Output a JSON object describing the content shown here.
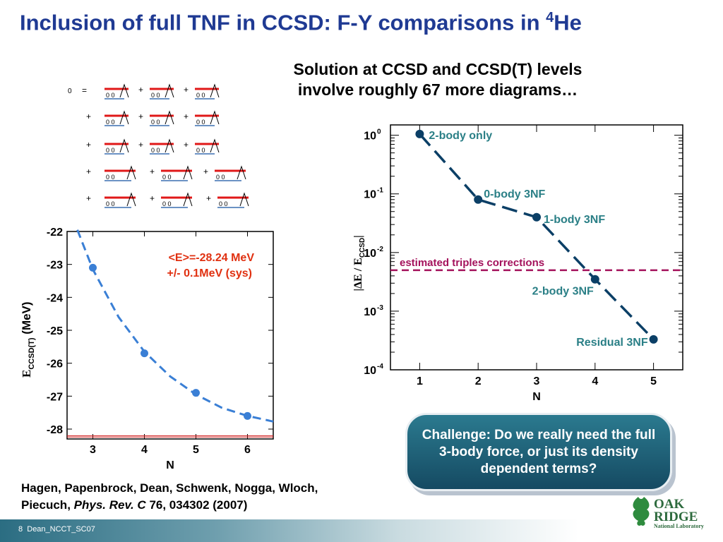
{
  "header": {
    "title_main": "Inclusion of full TNF in CCSD: F-Y comparisons in ",
    "title_sup": "4",
    "title_end": "He"
  },
  "subtitle": {
    "line1": "Solution at CCSD and CCSD(T) levels",
    "line2": "involve roughly 67 more diagrams…"
  },
  "diagrams": {
    "zero_label": "0",
    "equals": "=",
    "plus": "+",
    "vertex_label": "0 0"
  },
  "left_plot": {
    "ylabel_main": "E",
    "ylabel_sub": "CCSD(T)",
    "ylabel_unit": " (MeV)",
    "xlabel": "N",
    "annotation_line1": "<E>=-28.24 MeV",
    "annotation_line2": "+/- 0.1MeV (sys)"
  },
  "right_plot": {
    "ylabel": "|ΔE / E",
    "ylabel_sub": "CCSD",
    "ylabel_end": "|",
    "xlabel": "N",
    "triples_label": "estimated triples corrections",
    "point_labels": [
      "2-body only",
      "0-body 3NF",
      "1-body 3NF",
      "2-body 3NF",
      "Residual 3NF"
    ]
  },
  "chart_data": [
    {
      "type": "scatter",
      "xlabel": "N",
      "ylabel": "E_CCSD(T) (MeV)",
      "xlim": [
        2.5,
        6.5
      ],
      "ylim": [
        -28.3,
        -22
      ],
      "x_ticks": [
        3,
        4,
        5,
        6
      ],
      "y_ticks": [
        -22,
        -23,
        -24,
        -25,
        -26,
        -27,
        -28
      ],
      "series": [
        {
          "points": [
            {
              "x": 3,
              "y": -23.1
            },
            {
              "x": 4,
              "y": -25.7
            },
            {
              "x": 5,
              "y": -26.9
            },
            {
              "x": 6,
              "y": -27.6
            }
          ]
        }
      ],
      "fit_curve": {
        "x": [
          2.7,
          3,
          3.5,
          4,
          4.5,
          5,
          5.5,
          6,
          6.5
        ],
        "y": [
          -21.95,
          -23.15,
          -24.6,
          -25.65,
          -26.4,
          -26.95,
          -27.35,
          -27.6,
          -27.77
        ]
      },
      "reference_lines": [
        -28.2,
        -28.24
      ],
      "annotation": [
        "<E>=-28.24 MeV",
        "+/- 0.1MeV (sys)"
      ],
      "colors": {
        "points": "#3a7fd5",
        "curve": "#3a7fd5",
        "annotation": "#e03010",
        "reference": "#d02020"
      }
    },
    {
      "type": "line",
      "scale_y": "log",
      "xlabel": "N",
      "ylabel": "|ΔE / E_CCSD|",
      "xlim": [
        0.5,
        5.5
      ],
      "ylim": [
        0.0001,
        1.5
      ],
      "x_ticks": [
        1,
        2,
        3,
        4,
        5
      ],
      "y_ticks": [
        1,
        0.1,
        0.01,
        0.001,
        0.0001
      ],
      "series": [
        {
          "x": [
            1,
            2,
            3,
            4,
            5
          ],
          "y": [
            1.05,
            0.08,
            0.04,
            0.0035,
            0.00033
          ]
        }
      ],
      "point_labels": [
        "2-body only",
        "0-body 3NF",
        "1-body 3NF",
        "2-body 3NF",
        "Residual 3NF"
      ],
      "reference_lines": [
        {
          "y": 0.005,
          "label": "estimated triples corrections"
        }
      ],
      "colors": {
        "series": "#0b3f66",
        "labels": "#2a7f86",
        "reference": "#a4125c"
      }
    }
  ],
  "challenge": {
    "text": "Challenge:  Do we really need the full 3-body force, or just its density dependent terms?"
  },
  "citation": {
    "authors": "Hagen, Papenbrock, Dean, Schwenk, Nogga, Wloch, Piecuch, ",
    "journal": "Phys. Rev. C",
    "volume": "76",
    "rest": ", 034302 (2007)"
  },
  "footer": {
    "slide_num": "8",
    "slide_name": "Dean_NCCT_SC07"
  },
  "logo": {
    "line1": "OAK",
    "line2": "RIDGE",
    "line3": "National Laboratory"
  }
}
